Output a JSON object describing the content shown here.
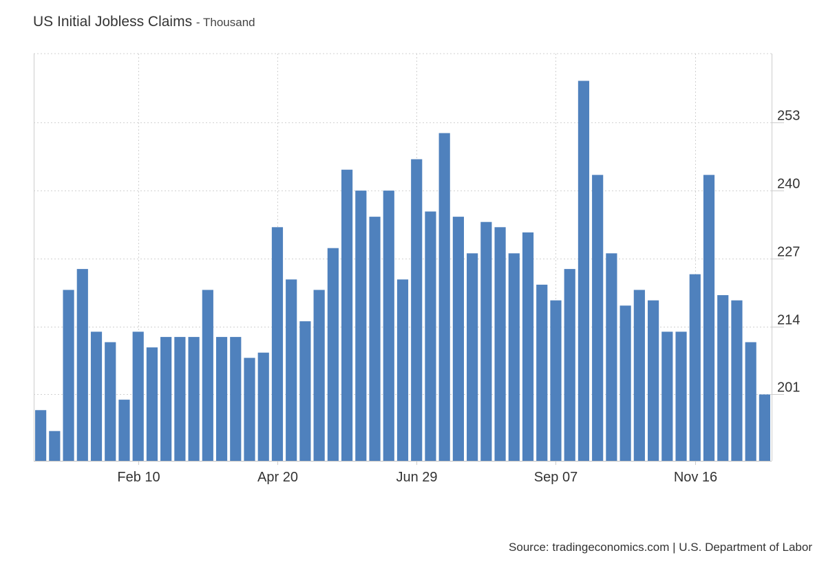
{
  "chart_data": {
    "type": "bar",
    "title": "US Initial Jobless Claims",
    "subtitle": "Thousand",
    "source": "Source: tradingeconomics.com | U.S. Department of Labor",
    "x_tick_labels": [
      "Feb 10",
      "Apr 20",
      "Jun 29",
      "Sep 07",
      "Nov 16"
    ],
    "x_tick_positions": [
      7,
      17,
      27,
      37,
      47
    ],
    "y_ticks": [
      201,
      214,
      227,
      240,
      253
    ],
    "ylim": [
      188.3,
      266.2
    ],
    "grid": true,
    "color": "#4f81bd",
    "values": [
      198,
      194,
      221,
      225,
      213,
      211,
      200,
      213,
      210,
      212,
      212,
      212,
      221,
      212,
      212,
      208,
      209,
      233,
      223,
      215,
      221,
      229,
      244,
      240,
      235,
      240,
      223,
      246,
      236,
      251,
      235,
      228,
      234,
      233,
      228,
      232,
      222,
      219,
      225,
      261,
      243,
      228,
      218,
      221,
      219,
      213,
      213,
      224,
      243,
      220,
      219,
      211,
      201
    ]
  }
}
